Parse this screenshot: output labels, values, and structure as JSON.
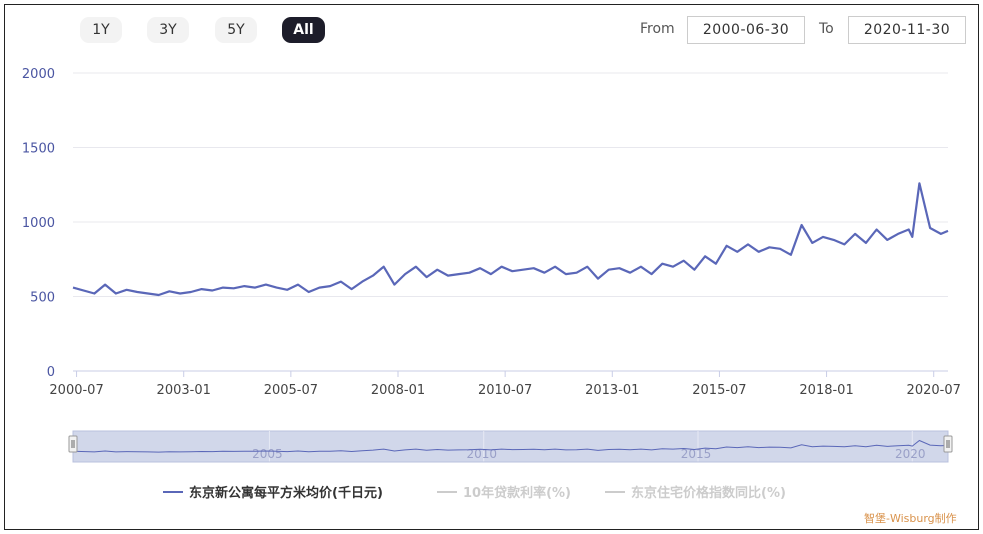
{
  "range_buttons": [
    {
      "label": "1Y",
      "active": false
    },
    {
      "label": "3Y",
      "active": false
    },
    {
      "label": "5Y",
      "active": false
    },
    {
      "label": "All",
      "active": true
    }
  ],
  "date_range": {
    "from_label": "From",
    "from_value": "2000-06-30",
    "to_label": "To",
    "to_value": "2020-11-30"
  },
  "navigator": {
    "year_labels": [
      "2005",
      "2010",
      "2015",
      "2020"
    ]
  },
  "credit": "智堡-Wisburg制作",
  "colors": {
    "series_line": "#5a67b8",
    "legend_inactive": "#cccccc",
    "navigator_fill": "#d1d7ea",
    "active_button": "#1d1d2a",
    "credit": "#d9924b"
  },
  "chart_data": {
    "type": "line",
    "title": "",
    "xlabel": "",
    "ylabel": "",
    "ylim": [
      0,
      2000
    ],
    "y_ticks": [
      0,
      500,
      1000,
      1500,
      2000
    ],
    "x_ticks": [
      "2000-07",
      "2003-01",
      "2005-07",
      "2008-01",
      "2010-07",
      "2013-01",
      "2015-07",
      "2018-01",
      "2020-07"
    ],
    "x_range": [
      "2000-06",
      "2020-11"
    ],
    "grid": true,
    "legend_position": "bottom",
    "legend": [
      {
        "name": "东京新公寓每平方米均价(千日元)",
        "active": true
      },
      {
        "name": "10年贷款利率(%)",
        "active": false
      },
      {
        "name": "东京住宅价格指数同比(%)",
        "active": false
      }
    ],
    "series": [
      {
        "name": "东京新公寓每平方米均价(千日元)",
        "x": [
          "2000-06",
          "2000-12",
          "2001-03",
          "2001-06",
          "2001-09",
          "2001-12",
          "2002-03",
          "2002-06",
          "2002-09",
          "2002-12",
          "2003-03",
          "2003-06",
          "2003-09",
          "2003-12",
          "2004-03",
          "2004-06",
          "2004-09",
          "2004-12",
          "2005-03",
          "2005-06",
          "2005-09",
          "2005-12",
          "2006-03",
          "2006-06",
          "2006-09",
          "2006-12",
          "2007-03",
          "2007-06",
          "2007-09",
          "2007-12",
          "2008-03",
          "2008-06",
          "2008-09",
          "2008-12",
          "2009-03",
          "2009-06",
          "2009-09",
          "2009-12",
          "2010-03",
          "2010-06",
          "2010-09",
          "2010-12",
          "2011-03",
          "2011-06",
          "2011-09",
          "2011-12",
          "2012-03",
          "2012-06",
          "2012-09",
          "2012-12",
          "2013-03",
          "2013-06",
          "2013-09",
          "2013-12",
          "2014-03",
          "2014-06",
          "2014-09",
          "2014-12",
          "2015-03",
          "2015-06",
          "2015-09",
          "2015-12",
          "2016-03",
          "2016-06",
          "2016-09",
          "2016-12",
          "2017-03",
          "2017-06",
          "2017-09",
          "2017-12",
          "2018-03",
          "2018-06",
          "2018-09",
          "2018-12",
          "2019-03",
          "2019-06",
          "2019-09",
          "2019-12",
          "2020-01",
          "2020-03",
          "2020-06",
          "2020-09",
          "2020-11"
        ],
        "values": [
          560,
          520,
          580,
          520,
          545,
          530,
          520,
          510,
          535,
          520,
          530,
          550,
          540,
          560,
          555,
          570,
          560,
          580,
          560,
          545,
          580,
          530,
          560,
          570,
          600,
          550,
          600,
          640,
          700,
          580,
          650,
          700,
          630,
          680,
          640,
          650,
          660,
          690,
          650,
          700,
          670,
          680,
          690,
          660,
          700,
          650,
          660,
          700,
          620,
          680,
          690,
          660,
          700,
          650,
          720,
          700,
          740,
          680,
          770,
          720,
          840,
          800,
          850,
          800,
          830,
          820,
          780,
          980,
          860,
          900,
          880,
          850,
          920,
          860,
          950,
          880,
          920,
          950,
          900,
          1260,
          960,
          920,
          940
        ]
      }
    ]
  }
}
